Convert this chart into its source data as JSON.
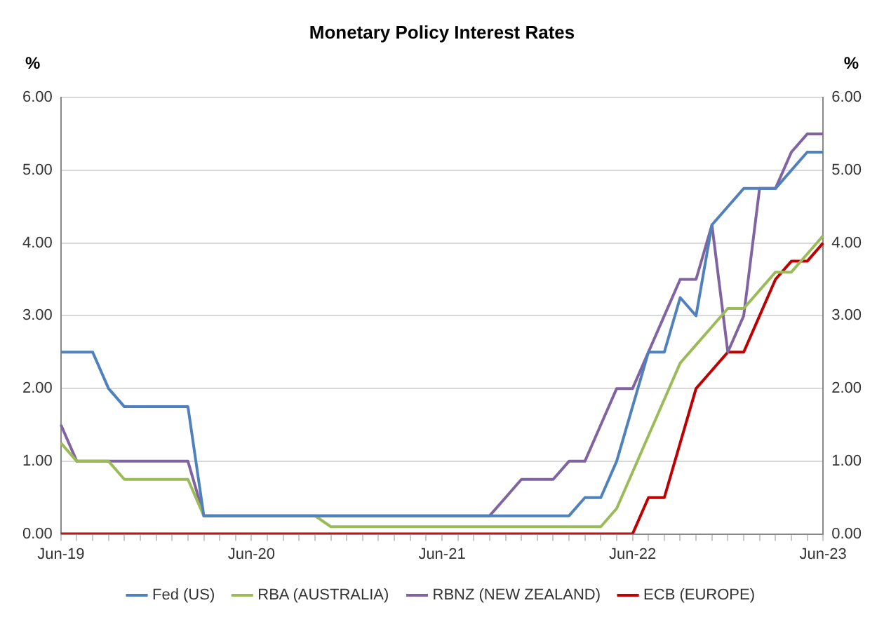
{
  "chart_data": {
    "type": "line",
    "title": "Monetary Policy Interest Rates",
    "ylabel": "%",
    "y2label": "%",
    "categories": [
      "Jun-19",
      null,
      null,
      null,
      null,
      null,
      null,
      null,
      null,
      null,
      null,
      null,
      "Jun-20",
      null,
      null,
      null,
      null,
      null,
      null,
      null,
      null,
      null,
      null,
      null,
      "Jun-21",
      null,
      null,
      null,
      null,
      null,
      null,
      null,
      null,
      null,
      null,
      null,
      "Jun-22",
      null,
      null,
      null,
      null,
      null,
      null,
      null,
      null,
      null,
      null,
      null,
      "Jun-23"
    ],
    "series": [
      {
        "name": "Fed (US)",
        "color": "#4f81bd",
        "values": [
          2.5,
          2.5,
          2.5,
          2.0,
          1.75,
          1.75,
          1.75,
          1.75,
          1.75,
          0.25,
          0.25,
          0.25,
          0.25,
          0.25,
          0.25,
          0.25,
          0.25,
          0.25,
          0.25,
          0.25,
          0.25,
          0.25,
          0.25,
          0.25,
          0.25,
          0.25,
          0.25,
          0.25,
          0.25,
          0.25,
          0.25,
          0.25,
          0.25,
          0.5,
          0.5,
          1.0,
          1.75,
          2.5,
          2.5,
          3.25,
          3.0,
          4.25,
          4.5,
          4.75,
          4.75,
          4.75,
          5.0,
          5.25,
          5.25
        ]
      },
      {
        "name": "RBA (AUSTRALIA)",
        "color": "#9bbb59",
        "values": [
          1.25,
          1.0,
          1.0,
          1.0,
          0.75,
          0.75,
          0.75,
          0.75,
          0.75,
          0.25,
          0.25,
          0.25,
          0.25,
          0.25,
          0.25,
          0.25,
          0.25,
          0.1,
          0.1,
          0.1,
          0.1,
          0.1,
          0.1,
          0.1,
          0.1,
          0.1,
          0.1,
          0.1,
          0.1,
          0.1,
          0.1,
          0.1,
          0.1,
          0.1,
          0.1,
          0.35,
          0.85,
          1.35,
          1.85,
          2.35,
          2.6,
          2.85,
          3.1,
          3.1,
          3.35,
          3.6,
          3.6,
          3.85,
          4.1
        ]
      },
      {
        "name": "RBNZ (NEW ZEALAND)",
        "color": "#8064a2",
        "values": [
          1.5,
          1.0,
          1.0,
          1.0,
          1.0,
          1.0,
          1.0,
          1.0,
          1.0,
          0.25,
          0.25,
          0.25,
          0.25,
          0.25,
          0.25,
          0.25,
          0.25,
          0.25,
          0.25,
          0.25,
          0.25,
          0.25,
          0.25,
          0.25,
          0.25,
          0.25,
          0.25,
          0.25,
          0.5,
          0.75,
          0.75,
          0.75,
          1.0,
          1.0,
          1.5,
          2.0,
          2.0,
          2.5,
          3.0,
          3.5,
          3.5,
          4.25,
          2.5,
          3.0,
          4.75,
          4.75,
          5.25,
          5.5,
          5.5
        ]
      },
      {
        "name": "ECB (EUROPE)",
        "color": "#c00000",
        "values": [
          0,
          0,
          0,
          0,
          0,
          0,
          0,
          0,
          0,
          0,
          0,
          0,
          0,
          0,
          0,
          0,
          0,
          0,
          0,
          0,
          0,
          0,
          0,
          0,
          0,
          0,
          0,
          0,
          0,
          0,
          0,
          0,
          0,
          0,
          0,
          0,
          0,
          0.5,
          0.5,
          1.25,
          2.0,
          2.25,
          2.5,
          2.5,
          3.0,
          3.5,
          3.75,
          3.75,
          4.0
        ]
      }
    ],
    "ylim": [
      0,
      6
    ],
    "yticks": [
      {
        "value": 0,
        "label": "0.00"
      },
      {
        "value": 1,
        "label": "1.00"
      },
      {
        "value": 2,
        "label": "2.00"
      },
      {
        "value": 3,
        "label": "3.00"
      },
      {
        "value": 4,
        "label": "4.00"
      },
      {
        "value": 5,
        "label": "5.00"
      },
      {
        "value": 6,
        "label": "6.00"
      }
    ],
    "y2lim": [
      0,
      6
    ],
    "y2ticks": [
      {
        "value": 0,
        "label": "0.00"
      },
      {
        "value": 1,
        "label": "1.00"
      },
      {
        "value": 2,
        "label": "2.00"
      },
      {
        "value": 3,
        "label": "3.00"
      },
      {
        "value": 4,
        "label": "4.00"
      },
      {
        "value": 5,
        "label": "5.00"
      },
      {
        "value": 6,
        "label": "6.00"
      }
    ],
    "grid": "y",
    "legend": "bottom",
    "marker": "none",
    "line_style": "solid"
  }
}
